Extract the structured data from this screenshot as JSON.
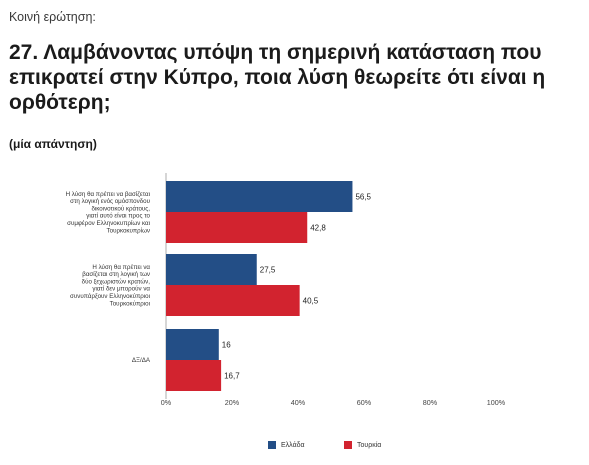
{
  "header": {
    "kicker": "Κοινή ερώτηση:",
    "title": "27. Λαμβάνοντας υπόψη τη σημερινή κατάσταση που επικρατεί στην Κύπρο, ποια λύση θεωρείτε ότι είναι η ορθότερη;",
    "subtitle": "(μία απάντηση)"
  },
  "colors": {
    "greece": "#234e86",
    "turkey": "#d2232f"
  },
  "chart_data": {
    "type": "bar",
    "orientation": "horizontal",
    "categories": [
      [
        "Η λύση θα πρέπει να βασίζεται",
        "στη λογική ενός ομόσπονδου",
        "δικοινοτικού κράτους,",
        "γιατί αυτό είναι προς το",
        "συμφέρον Ελληνοκυπρίων και",
        "Τουρκοκυπρίων"
      ],
      [
        "Η λύση θα πρέπει να",
        "βασίζεται στη λογική των",
        "δύο ξεχωριστών κρατών,",
        "γιατί δεν μπορούν να",
        "συνυπάρξουν Ελληνοκύπριοι",
        "Τουρκοκύπριοι"
      ],
      [
        "ΔΞ/ΔΑ"
      ]
    ],
    "series": [
      {
        "name": "Ελλάδα",
        "color": "#234e86",
        "values": [
          56.5,
          27.5,
          16
        ]
      },
      {
        "name": "Τουρκία",
        "color": "#d2232f",
        "values": [
          42.8,
          40.5,
          16.7
        ]
      }
    ],
    "value_labels": [
      [
        "56,5",
        "27,5",
        "16"
      ],
      [
        "42,8",
        "40,5",
        "16,7"
      ]
    ],
    "xlim": [
      0,
      100
    ],
    "xticks": [
      "0%",
      "20%",
      "40%",
      "60%",
      "80%",
      "100%"
    ],
    "legend": "bottom-center",
    "grid": false
  }
}
